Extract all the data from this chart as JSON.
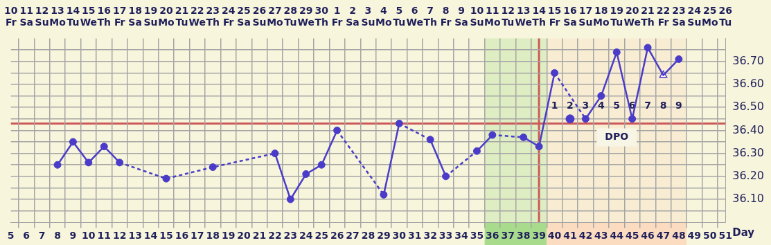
{
  "chart_data": {
    "type": "line",
    "xlabel": "Day",
    "xlim": [
      5,
      51
    ],
    "xticks": [
      5,
      6,
      7,
      8,
      9,
      10,
      11,
      12,
      13,
      14,
      15,
      16,
      17,
      18,
      19,
      20,
      21,
      22,
      23,
      24,
      25,
      26,
      27,
      28,
      29,
      30,
      31,
      32,
      33,
      34,
      35,
      36,
      37,
      38,
      39,
      40,
      41,
      42,
      43,
      44,
      45,
      46,
      47,
      48,
      49,
      50,
      51
    ],
    "x2lim": [
      "--09-10",
      "--10-26"
    ],
    "x2ticks": [
      {
        "value": "--09-10",
        "label": "10 Fr"
      },
      {
        "value": "--09-11",
        "label": "11 Sa"
      },
      {
        "value": "--09-12",
        "label": "12 Su"
      },
      {
        "value": "--09-13",
        "label": "13 Mo"
      },
      {
        "value": "--09-14",
        "label": "14 Tu"
      },
      {
        "value": "--09-15",
        "label": "15 We"
      },
      {
        "value": "--09-16",
        "label": "16 Th"
      },
      {
        "value": "--09-17",
        "label": "17 Fr"
      },
      {
        "value": "--09-18",
        "label": "18 Sa"
      },
      {
        "value": "--09-19",
        "label": "19 Su"
      },
      {
        "value": "--09-20",
        "label": "20 Mo"
      },
      {
        "value": "--09-21",
        "label": "21 Tu"
      },
      {
        "value": "--09-22",
        "label": "22 We"
      },
      {
        "value": "--09-23",
        "label": "23 Th"
      },
      {
        "value": "--09-24",
        "label": "24 Fr"
      },
      {
        "value": "--09-25",
        "label": "25 Sa"
      },
      {
        "value": "--09-26",
        "label": "26 Su"
      },
      {
        "value": "--09-27",
        "label": "27 Mo"
      },
      {
        "value": "--09-28",
        "label": "28 Tu"
      },
      {
        "value": "--09-29",
        "label": "29 We"
      },
      {
        "value": "--09-30",
        "label": "30 Th"
      },
      {
        "value": "--10-01",
        "label": "1 Fr"
      },
      {
        "value": "--10-02",
        "label": "2 Sa"
      },
      {
        "value": "--10-03",
        "label": "3 Su"
      },
      {
        "value": "--10-04",
        "label": "4 Mo"
      },
      {
        "value": "--10-05",
        "label": "5 Tu"
      },
      {
        "value": "--10-06",
        "label": "6 We"
      },
      {
        "value": "--10-07",
        "label": "7 Th"
      },
      {
        "value": "--10-08",
        "label": "8 Fr"
      },
      {
        "value": "--10-09",
        "label": "9 Sa"
      },
      {
        "value": "--10-10",
        "label": "10 Su"
      },
      {
        "value": "--10-11",
        "label": "11 Mo"
      },
      {
        "value": "--10-12",
        "label": "12 Tu"
      },
      {
        "value": "--10-13",
        "label": "13 We"
      },
      {
        "value": "--10-14",
        "label": "14 Th"
      },
      {
        "value": "--10-15",
        "label": "15 Fr"
      },
      {
        "value": "--10-16",
        "label": "16 Sa"
      },
      {
        "value": "--10-17",
        "label": "17 Su"
      },
      {
        "value": "--10-18",
        "label": "18 Mo"
      },
      {
        "value": "--10-19",
        "label": "19 Tu"
      },
      {
        "value": "--10-20",
        "label": "20 We"
      },
      {
        "value": "--10-21",
        "label": "21 Th"
      },
      {
        "value": "--10-22",
        "label": "22 Fr"
      },
      {
        "value": "--10-23",
        "label": "23 Sa"
      },
      {
        "value": "--10-24",
        "label": "24 Su"
      },
      {
        "value": "--10-25",
        "label": "25 Mo"
      },
      {
        "value": "--10-26",
        "label": "26 Tu"
      }
    ],
    "ylim": [
      36.0,
      36.8
    ],
    "yticks": [
      {
        "value": 36.05,
        "label": null
      },
      {
        "value": 36.1,
        "label": "36.10"
      },
      {
        "value": 36.15,
        "label": null
      },
      {
        "value": 36.2,
        "label": "36.20"
      },
      {
        "value": 36.25,
        "label": null
      },
      {
        "value": 36.3,
        "label": "36.30"
      },
      {
        "value": 36.35,
        "label": null
      },
      {
        "value": 36.4,
        "label": "36.40"
      },
      {
        "value": 36.45,
        "label": null
      },
      {
        "value": 36.5,
        "label": "36.50"
      },
      {
        "value": 36.55,
        "label": null
      },
      {
        "value": 36.6,
        "label": "36.60"
      },
      {
        "value": 36.65,
        "label": null
      },
      {
        "value": 36.7,
        "label": "36.70"
      },
      {
        "value": 36.75,
        "label": null
      }
    ],
    "series": [
      {
        "color": "#4a3cc8",
        "marker": "circle",
        "x": [
          8,
          9,
          10,
          11,
          12,
          15,
          18,
          22,
          23,
          24,
          25,
          26,
          29,
          30,
          32,
          33,
          35,
          36,
          38,
          39,
          40,
          42,
          43,
          44,
          45,
          46,
          47,
          48
        ],
        "values": [
          36.25,
          36.35,
          36.26,
          36.33,
          36.26,
          36.19,
          36.24,
          36.3,
          36.1,
          36.21,
          36.25,
          36.4,
          36.12,
          36.43,
          36.36,
          36.2,
          36.31,
          36.38,
          36.37,
          36.33,
          36.65,
          36.45,
          36.55,
          36.74,
          36.45,
          36.76,
          36.64,
          36.71
        ]
      },
      {
        "type": "scatter",
        "color": "#4a3cc8",
        "marker": "circle",
        "x": [
          41
        ],
        "values": [
          36.45
        ]
      },
      {
        "type": "scatter",
        "color": "#4a3cc8",
        "marker": "triangle",
        "x": [
          47
        ],
        "values": [
          36.64
        ]
      }
    ],
    "ref_lines": [
      {
        "axis": "y",
        "value": 36.43,
        "color": "#cc5a5a"
      },
      {
        "axis": "x",
        "value": 39,
        "color": "#cc5a5a"
      }
    ],
    "bands": [
      {
        "axis": "x",
        "from": 35.5,
        "to": 39.5,
        "color": "#a8dc8c"
      },
      {
        "axis": "x",
        "from": 39.5,
        "to": 48.5,
        "color": "#fbdcc0"
      }
    ],
    "annotations": [
      "1",
      "2",
      "3",
      "4",
      "5",
      "6",
      "7",
      "8",
      "9",
      "DPO"
    ],
    "grid": true,
    "legend": false
  }
}
